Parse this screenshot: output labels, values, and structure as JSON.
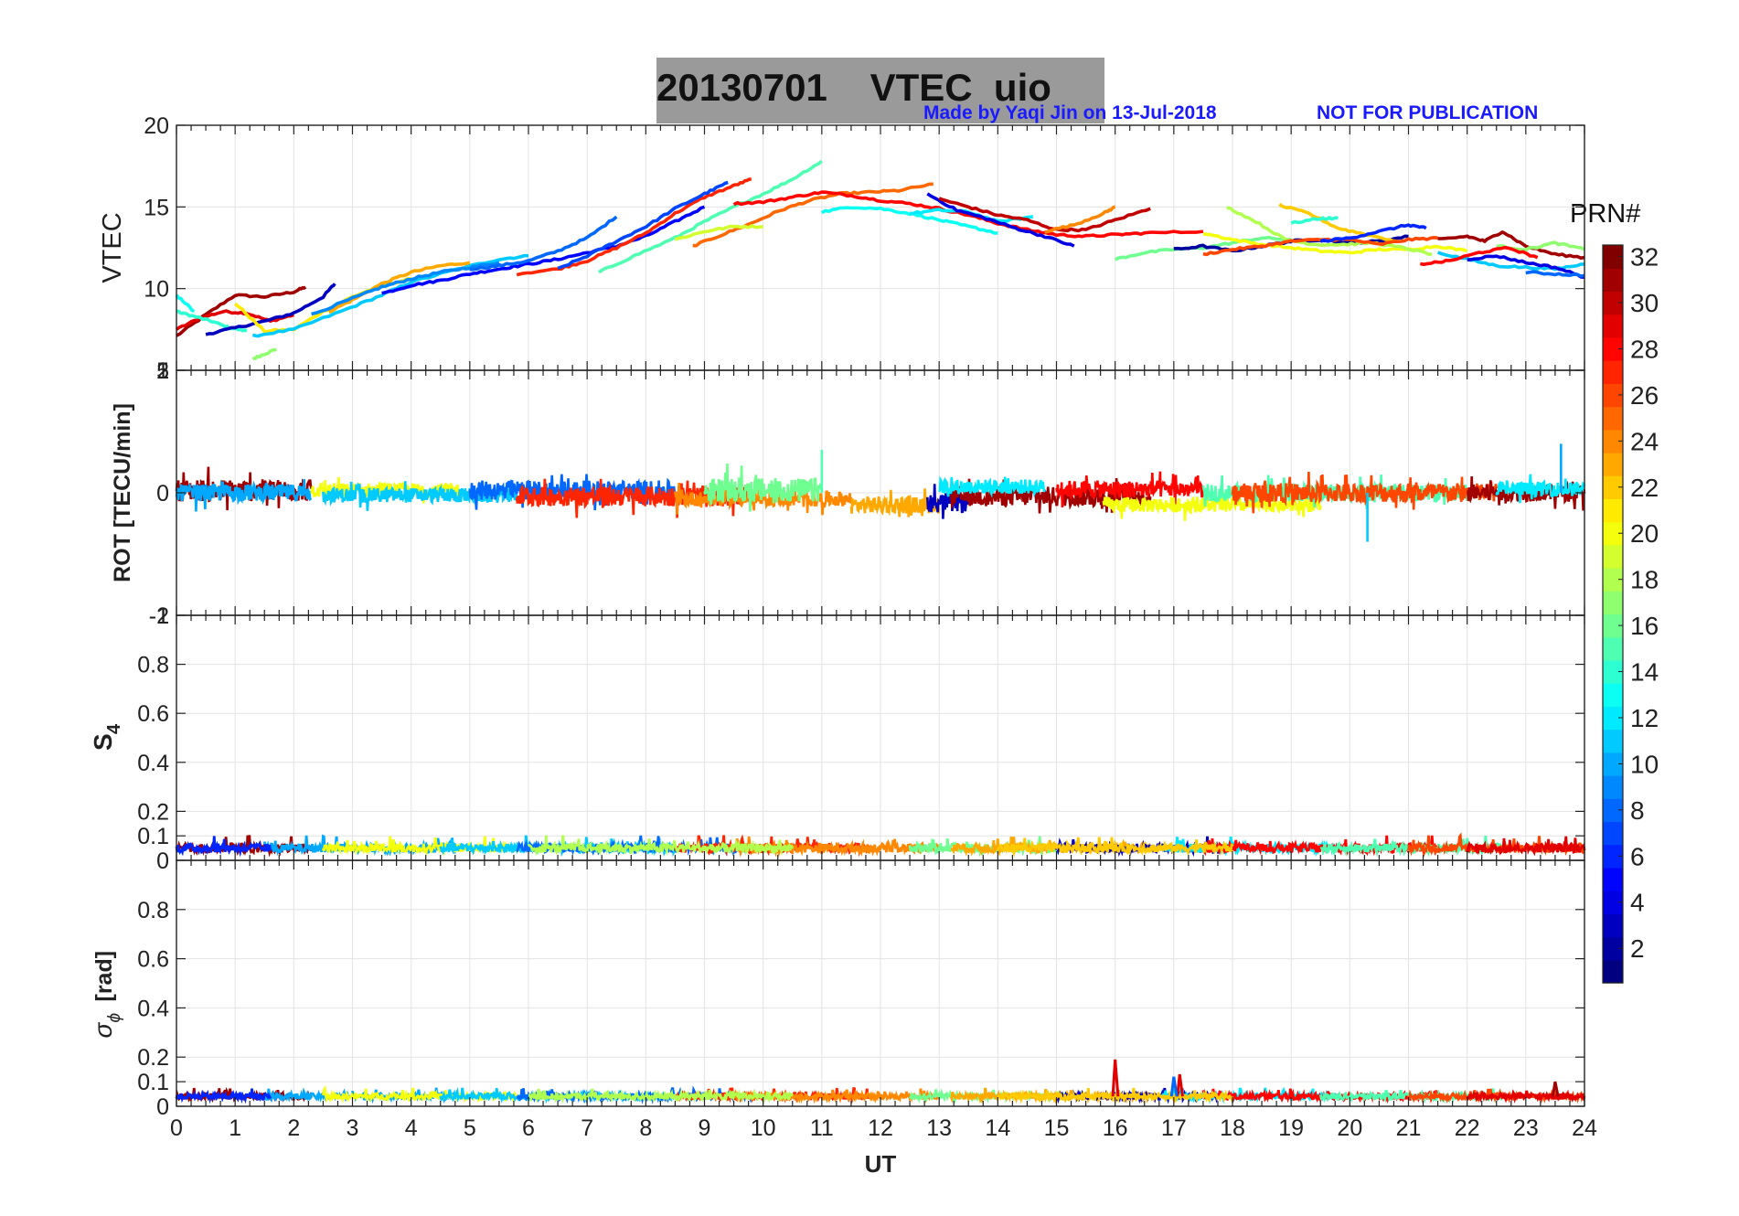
{
  "title": {
    "date": "20130701",
    "product": "VTEC",
    "station": "uio"
  },
  "credit": "Made by Yaqi Jin on 13-Jul-2018",
  "notice": "NOT FOR PUBLICATION",
  "colorbar": {
    "label": "PRN#",
    "ticks": [
      "2",
      "4",
      "6",
      "8",
      "10",
      "12",
      "14",
      "16",
      "18",
      "20",
      "22",
      "24",
      "26",
      "28",
      "30",
      "32"
    ],
    "range": [
      1,
      32
    ],
    "colormap": "jet"
  },
  "x_axis": {
    "label": "UT",
    "ticks": [
      "0",
      "1",
      "2",
      "3",
      "4",
      "5",
      "6",
      "7",
      "8",
      "9",
      "10",
      "11",
      "12",
      "13",
      "14",
      "15",
      "16",
      "17",
      "18",
      "19",
      "20",
      "21",
      "22",
      "23",
      "24"
    ],
    "range": [
      0,
      24
    ]
  },
  "panels": [
    {
      "id": "vtec",
      "ylabel": "VTEC",
      "ylabel_bold": false,
      "yticks": [
        "5",
        "10",
        "15",
        "20"
      ],
      "ylim": [
        5,
        20
      ]
    },
    {
      "id": "rot",
      "ylabel": "ROT [TECU/min]",
      "ylabel_bold": true,
      "yticks": [
        "-1",
        "0",
        "1"
      ],
      "ylim": [
        -1,
        1
      ],
      "overlap_labels": {
        "top": "2",
        "bottom": "-2"
      }
    },
    {
      "id": "s4",
      "ylabel_main": "S",
      "ylabel_sub": "4",
      "yticks": [
        "0",
        "0.1",
        "0.2",
        "0.4",
        "0.6",
        "0.8",
        "1"
      ],
      "ylim": [
        0,
        1
      ]
    },
    {
      "id": "sigphi",
      "ylabel_main": "σ",
      "ylabel_sub": "ϕ",
      "ylabel_unit": "[rad]",
      "yticks": [
        "0",
        "0.1",
        "0.2",
        "0.4",
        "0.6",
        "0.8"
      ],
      "ylim": [
        0,
        1
      ]
    }
  ],
  "chart_data": [
    {
      "type": "line",
      "title": "20130701    VTEC  uio",
      "ylabel": "VTEC",
      "xlabel": "UT",
      "xlim": [
        0,
        24
      ],
      "ylim": [
        5,
        20
      ],
      "grid": true,
      "series": [
        {
          "prn": 31,
          "x": [
            0,
            0.5,
            1,
            1.5,
            2,
            2.2
          ],
          "y": [
            7.1,
            8.4,
            9.6,
            9.5,
            9.8,
            10.1
          ]
        },
        {
          "prn": 29,
          "x": [
            0,
            0.4,
            0.8,
            1.2,
            1.6,
            2.0
          ],
          "y": [
            7.5,
            8.2,
            8.6,
            8.5,
            8.0,
            8.4
          ]
        },
        {
          "prn": 14,
          "x": [
            0,
            0.3,
            0.6,
            0.9,
            1.2
          ],
          "y": [
            8.6,
            8.3,
            8.0,
            7.6,
            7.4
          ]
        },
        {
          "prn": 3,
          "x": [
            0.5,
            1.0,
            1.5,
            2.0,
            2.5,
            2.7
          ],
          "y": [
            7.2,
            7.6,
            8.0,
            8.5,
            9.5,
            10.3
          ]
        },
        {
          "prn": 17,
          "x": [
            1.3,
            1.5,
            1.7
          ],
          "y": [
            5.7,
            6.0,
            6.3
          ]
        },
        {
          "prn": 21,
          "x": [
            1.0,
            1.5,
            2.0,
            2.5,
            3.0,
            3.5,
            4.0
          ],
          "y": [
            9.1,
            7.4,
            7.5,
            8.6,
            9.5,
            10.2,
            10.6
          ]
        },
        {
          "prn": 11,
          "x": [
            1.3,
            2.0,
            2.8,
            3.5,
            4.0,
            4.8,
            5.5,
            6.0
          ],
          "y": [
            7.1,
            7.5,
            8.6,
            9.6,
            10.4,
            11.2,
            11.8,
            12.0
          ]
        },
        {
          "prn": 23,
          "x": [
            2.6,
            3.0,
            3.5,
            4.0,
            4.5,
            5.0
          ],
          "y": [
            8.6,
            9.3,
            10.3,
            11.0,
            11.4,
            11.6
          ]
        },
        {
          "prn": 9,
          "x": [
            2.3,
            3.0,
            3.5,
            4.0,
            4.5,
            5.0,
            5.5
          ],
          "y": [
            8.4,
            9.4,
            10.1,
            10.6,
            11.0,
            11.3,
            11.6
          ]
        },
        {
          "prn": 5,
          "x": [
            3.5,
            4.0,
            4.5,
            5.0,
            5.5,
            6.0,
            6.5,
            7.0,
            7.5,
            8.0,
            8.5,
            9.0
          ],
          "y": [
            9.7,
            10.2,
            10.5,
            10.9,
            11.2,
            11.5,
            11.8,
            12.2,
            12.6,
            13.2,
            14.1,
            15.0
          ]
        },
        {
          "prn": 8,
          "x": [
            5.0,
            5.5,
            6.0,
            6.5,
            7.0,
            7.5
          ],
          "y": [
            11.2,
            11.4,
            11.7,
            12.3,
            13.1,
            14.4
          ]
        },
        {
          "prn": 27,
          "x": [
            5.8,
            6.5,
            7.0,
            7.5,
            8.0,
            8.5,
            9.0,
            9.5,
            9.8
          ],
          "y": [
            10.9,
            11.2,
            11.7,
            12.5,
            13.4,
            14.6,
            15.6,
            16.3,
            16.7
          ]
        },
        {
          "prn": 25,
          "x": [
            8.8,
            9.3,
            9.8,
            10.3,
            10.8,
            11.3,
            11.8,
            12.3,
            12.9
          ],
          "y": [
            12.6,
            13.3,
            14.0,
            14.8,
            15.4,
            15.8,
            15.9,
            16.0,
            16.4
          ]
        },
        {
          "prn": 7,
          "x": [
            6.5,
            7.0,
            7.5,
            8.0,
            8.5,
            9.0,
            9.4
          ],
          "y": [
            11.2,
            12.0,
            12.9,
            13.8,
            14.9,
            15.8,
            16.5
          ]
        },
        {
          "prn": 15,
          "x": [
            7.2,
            7.8,
            8.5,
            9.0,
            9.5,
            10.0,
            10.5,
            11.0
          ],
          "y": [
            11.0,
            12.0,
            13.1,
            14.1,
            15.0,
            15.8,
            16.7,
            17.8
          ]
        },
        {
          "prn": 19,
          "x": [
            8.5,
            9.0,
            9.5,
            10.0
          ],
          "y": [
            13.0,
            13.5,
            13.8,
            13.8
          ]
        },
        {
          "prn": 28,
          "x": [
            9.5,
            10.0,
            10.5,
            11.0,
            11.5,
            12.0,
            12.5,
            13.0,
            13.5,
            14.0,
            14.5,
            15.0,
            15.5,
            16.0,
            16.5,
            17.5
          ],
          "y": [
            15.2,
            15.3,
            15.6,
            15.9,
            15.7,
            15.4,
            15.2,
            14.9,
            14.5,
            14.0,
            13.6,
            13.3,
            13.2,
            13.3,
            13.4,
            13.5
          ]
        },
        {
          "prn": 13,
          "x": [
            11.0,
            11.5,
            12.0,
            12.5,
            13.0,
            13.5,
            14.0
          ],
          "y": [
            14.7,
            15.0,
            14.9,
            14.6,
            14.2,
            13.8,
            13.4
          ]
        },
        {
          "prn": 12,
          "x": [
            12.5,
            13.0,
            13.5,
            14.0,
            14.6
          ],
          "y": [
            14.6,
            14.8,
            14.7,
            14.1,
            14.4
          ]
        },
        {
          "prn": 4,
          "x": [
            12.8,
            13.3,
            13.8,
            14.3,
            14.8,
            15.3
          ],
          "y": [
            15.8,
            14.8,
            14.3,
            13.7,
            13.2,
            12.6
          ]
        },
        {
          "prn": 30,
          "x": [
            13.0,
            13.5,
            14.0,
            14.5,
            15.0,
            15.5,
            16.0,
            16.6
          ],
          "y": [
            15.5,
            15.0,
            14.5,
            14.2,
            13.6,
            13.6,
            14.2,
            14.9
          ]
        },
        {
          "prn": 24,
          "x": [
            14.8,
            15.3,
            15.8,
            16.0
          ],
          "y": [
            13.5,
            13.9,
            14.6,
            15.0
          ]
        },
        {
          "prn": 16,
          "x": [
            16.0,
            16.5,
            17.0,
            17.5,
            18.0,
            18.5,
            19.0
          ],
          "y": [
            11.8,
            12.2,
            12.4,
            12.5,
            12.8,
            13.1,
            13.0
          ]
        },
        {
          "prn": 2,
          "x": [
            17.0,
            17.5,
            18.0,
            18.5,
            19.0,
            19.5,
            20.0,
            20.5,
            21.0
          ],
          "y": [
            12.4,
            12.6,
            12.3,
            12.6,
            12.9,
            13.0,
            12.8,
            12.9,
            13.2
          ]
        },
        {
          "prn": 20,
          "x": [
            17.5,
            18.0,
            18.5,
            19.0,
            19.5,
            20.0,
            20.5,
            21.0,
            21.5,
            22.0
          ],
          "y": [
            13.4,
            13.0,
            12.7,
            12.5,
            12.3,
            12.2,
            12.4,
            12.4,
            12.6,
            12.3
          ]
        },
        {
          "prn": 18,
          "x": [
            17.9,
            18.4,
            18.9,
            19.4,
            19.9,
            20.4,
            20.9,
            21.4
          ],
          "y": [
            15.0,
            14.1,
            13.0,
            12.7,
            12.7,
            12.8,
            12.5,
            12.1
          ]
        },
        {
          "prn": 22,
          "x": [
            18.8,
            19.3,
            19.8,
            20.3,
            20.8
          ],
          "y": [
            15.1,
            14.6,
            13.7,
            13.3,
            12.9
          ]
        },
        {
          "prn": 14,
          "x": [
            19.0,
            19.5,
            19.8
          ],
          "y": [
            14.0,
            14.3,
            14.3
          ]
        },
        {
          "prn": 26,
          "x": [
            17.5,
            18.0,
            18.5,
            19.0,
            19.5,
            20.0,
            20.5,
            21.0,
            21.5
          ],
          "y": [
            12.1,
            12.4,
            12.6,
            12.9,
            13.0,
            13.0,
            12.7,
            13.0,
            13.1
          ]
        },
        {
          "prn": 6,
          "x": [
            19.5,
            20.0,
            20.5,
            21.0,
            21.3
          ],
          "y": [
            12.9,
            13.1,
            13.5,
            13.9,
            13.7
          ]
        },
        {
          "prn": 31,
          "x": [
            21.5,
            22.0,
            22.3,
            22.6,
            23.0,
            23.5,
            24.0
          ],
          "y": [
            13.0,
            13.2,
            12.9,
            13.5,
            12.6,
            12.1,
            11.9
          ]
        },
        {
          "prn": 11,
          "x": [
            21.5,
            22.0,
            22.5,
            23.0,
            23.5,
            24.0
          ],
          "y": [
            12.2,
            11.8,
            11.4,
            11.3,
            11.2,
            11.5
          ]
        },
        {
          "prn": 4,
          "x": [
            22.0,
            22.5,
            23.0,
            23.5,
            24.0
          ],
          "y": [
            11.8,
            12.0,
            11.6,
            11.3,
            10.7
          ]
        },
        {
          "prn": 17,
          "x": [
            22.5,
            23.0,
            23.5,
            24.0
          ],
          "y": [
            12.6,
            12.4,
            12.8,
            12.4
          ]
        },
        {
          "prn": 28,
          "x": [
            21.2,
            21.7,
            22.2,
            22.7,
            23.2
          ],
          "y": [
            11.5,
            11.7,
            12.2,
            12.5,
            11.9
          ]
        },
        {
          "prn": 8,
          "x": [
            23.0,
            23.5,
            24.0
          ],
          "y": [
            11.0,
            10.9,
            10.8
          ]
        },
        {
          "prn": 13,
          "x": [
            0,
            0.3
          ],
          "y": [
            9.6,
            8.6
          ]
        }
      ]
    },
    {
      "type": "line",
      "ylabel": "ROT [TECU/min]",
      "xlabel": "UT",
      "xlim": [
        0,
        24
      ],
      "ylim": [
        -1,
        1
      ],
      "grid": true,
      "note": "dense noise traces around 0",
      "segments": [
        {
          "prn": 31,
          "x": [
            0,
            2.3
          ],
          "level": 0.02,
          "amp": 0.09
        },
        {
          "prn": 10,
          "x": [
            0,
            2.3
          ],
          "level": 0.0,
          "amp": 0.07
        },
        {
          "prn": 20,
          "x": [
            2.3,
            4.8
          ],
          "level": 0.02,
          "amp": 0.06
        },
        {
          "prn": 11,
          "x": [
            2.5,
            5.8
          ],
          "level": -0.02,
          "amp": 0.06
        },
        {
          "prn": 8,
          "x": [
            5.0,
            8.5
          ],
          "level": 0.02,
          "amp": 0.08
        },
        {
          "prn": 27,
          "x": [
            5.8,
            9.8
          ],
          "level": -0.03,
          "amp": 0.08
        },
        {
          "prn": 24,
          "x": [
            8.5,
            11.5
          ],
          "level": -0.05,
          "amp": 0.06
        },
        {
          "prn": 16,
          "x": [
            9.0,
            11.0
          ],
          "level": 0.02,
          "amp": 0.1
        },
        {
          "prn": 23,
          "x": [
            11.5,
            13.0
          ],
          "level": -0.1,
          "amp": 0.07
        },
        {
          "prn": 3,
          "x": [
            12.8,
            13.5
          ],
          "level": -0.08,
          "amp": 0.08
        },
        {
          "prn": 31,
          "x": [
            13.2,
            16.6
          ],
          "level": -0.03,
          "amp": 0.08
        },
        {
          "prn": 12,
          "x": [
            13.0,
            14.8
          ],
          "level": 0.05,
          "amp": 0.06
        },
        {
          "prn": 28,
          "x": [
            15.0,
            17.5
          ],
          "level": 0.03,
          "amp": 0.07
        },
        {
          "prn": 20,
          "x": [
            15.8,
            19.5
          ],
          "level": -0.1,
          "amp": 0.06
        },
        {
          "prn": 15,
          "x": [
            17.5,
            22.0
          ],
          "level": 0.0,
          "amp": 0.07
        },
        {
          "prn": 26,
          "x": [
            18.0,
            22.5
          ],
          "level": 0.0,
          "amp": 0.08
        },
        {
          "prn": 31,
          "x": [
            22.0,
            24.0
          ],
          "level": 0.0,
          "amp": 0.07
        },
        {
          "prn": 12,
          "x": [
            22.5,
            24.0
          ],
          "level": 0.03,
          "amp": 0.06
        }
      ],
      "spikes": [
        {
          "prn": 11,
          "x": 20.3,
          "y": -0.4
        },
        {
          "prn": 10,
          "x": 23.6,
          "y": 0.4
        },
        {
          "prn": 15,
          "x": 11.0,
          "y": 0.35
        }
      ]
    },
    {
      "type": "line",
      "ylabel": "S4",
      "xlabel": "UT",
      "xlim": [
        0,
        24
      ],
      "ylim": [
        0,
        1
      ],
      "grid": true,
      "note": "low-level noise near 0.04–0.1 for all PRNs",
      "baseline": 0.05
    },
    {
      "type": "line",
      "ylabel": "σφ [rad]",
      "xlabel": "UT",
      "xlim": [
        0,
        24
      ],
      "ylim": [
        0,
        1
      ],
      "grid": true,
      "note": "low-level noise near 0.03–0.06; spike ~0.19 at 16 UT",
      "baseline": 0.04,
      "spikes": [
        {
          "prn": 29,
          "x": 16.0,
          "y": 0.19
        },
        {
          "prn": 29,
          "x": 17.1,
          "y": 0.13
        },
        {
          "prn": 8,
          "x": 17.0,
          "y": 0.12
        },
        {
          "prn": 31,
          "x": 23.5,
          "y": 0.1
        }
      ]
    }
  ]
}
